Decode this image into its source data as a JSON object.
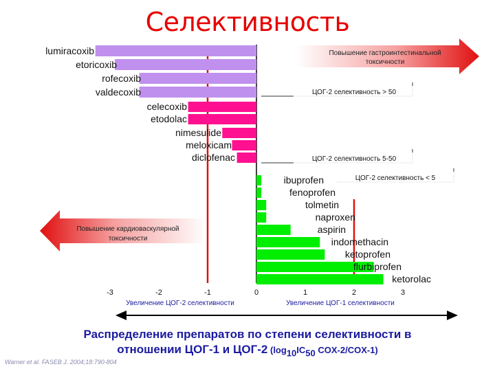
{
  "title": "Селективность",
  "caption": {
    "line1": "Распределение препаратов по степени селективности в",
    "line2_a": "отношении ЦОГ-1 и ЦОГ-2",
    "line2_b": " (log",
    "line2_sub1": "10",
    "line2_c": "IC",
    "line2_sub2": "50",
    "line2_d": " COX-2/COX-1)"
  },
  "reference": "Warner et al. FASEB J. 2004;18:790-804",
  "chart_data": {
    "type": "bar",
    "orientation": "horizontal",
    "xlim": [
      -3,
      3
    ],
    "xticks": [
      "-3",
      "-2",
      "-1",
      "0",
      "1",
      "2",
      "3"
    ],
    "xticks_values": [
      -3,
      -2,
      -1,
      0,
      1,
      2,
      3
    ],
    "vlines": [
      -1,
      0,
      2
    ],
    "axis_label_left": "Увеличение ЦОГ-2 селективности",
    "axis_label_right": "Увеличение ЦОГ-1 селективности",
    "groups": [
      {
        "label": "ЦОГ-2 селективность > 50",
        "color": "#c090ee"
      },
      {
        "label": "ЦОГ-2 селективность 5-50",
        "color": "#ff1090"
      },
      {
        "label": "ЦОГ-2 селективность < 5",
        "color": "#00ee00"
      }
    ],
    "categories": [
      "lumiracoxib",
      "etoricoxib",
      "rofecoxib",
      "valdecoxib",
      "celecoxib",
      "etodolac",
      "nimesulide",
      "meloxicam",
      "diclofenac",
      "ibuprofen",
      "fenoprofen",
      "tolmetin",
      "naproxen",
      "aspirin",
      "indomethacin",
      "ketoprofen",
      "flurbiprofen",
      "ketorolac"
    ],
    "values": [
      -3.3,
      -2.9,
      -2.4,
      -2.4,
      -1.4,
      -1.4,
      -0.7,
      -0.5,
      -0.4,
      0.1,
      0.1,
      0.2,
      0.2,
      0.7,
      1.3,
      1.4,
      2.4,
      2.6
    ],
    "group_index": [
      0,
      0,
      0,
      0,
      1,
      1,
      1,
      1,
      1,
      2,
      2,
      2,
      2,
      2,
      2,
      2,
      2,
      2
    ],
    "annotations": [
      {
        "text_line1": "Повышение гастроинтестинальной",
        "text_line2": "токсичности",
        "direction": "right"
      },
      {
        "text_line1": "Повышение кардиоваскулярной",
        "text_line2": "токсичности",
        "direction": "left"
      }
    ]
  }
}
